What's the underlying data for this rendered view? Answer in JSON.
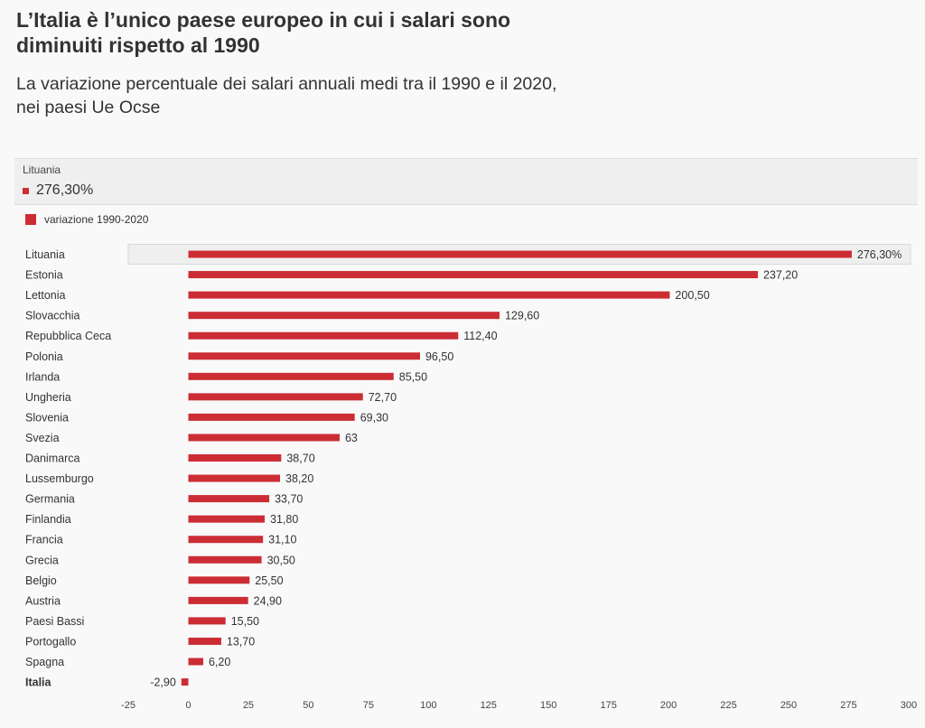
{
  "title": "L’Italia è l’unico paese europeo in cui i salari sono diminuiti rispetto al 1990",
  "subtitle": "La variazione percentuale dei salari annuali medi tra il 1990 e il 2020, nei paesi Ue Ocse",
  "tooltip": {
    "label": "Lituania",
    "value": "276,30%"
  },
  "legend": {
    "label": "variazione 1990-2020"
  },
  "colors": {
    "bar": "#cc2d35",
    "highlight_bg": "#efefef",
    "background": "#f9f9f9"
  },
  "chart_data": {
    "type": "bar",
    "orientation": "horizontal",
    "categories": [
      "Lituania",
      "Estonia",
      "Lettonia",
      "Slovacchia",
      "Repubblica Ceca",
      "Polonia",
      "Irlanda",
      "Ungheria",
      "Slovenia",
      "Svezia",
      "Danimarca",
      "Lussemburgo",
      "Germania",
      "Finlandia",
      "Francia",
      "Grecia",
      "Belgio",
      "Austria",
      "Paesi Bassi",
      "Portogallo",
      "Spagna",
      "Italia"
    ],
    "series": [
      {
        "name": "variazione 1990-2020",
        "values": [
          276.3,
          237.2,
          200.5,
          129.6,
          112.4,
          96.5,
          85.5,
          72.7,
          69.3,
          63,
          38.7,
          38.2,
          33.7,
          31.8,
          31.1,
          30.5,
          25.5,
          24.9,
          15.5,
          13.7,
          6.2,
          -2.9
        ]
      }
    ],
    "value_labels": [
      "276,30%",
      "237,20",
      "200,50",
      "129,60",
      "112,40",
      "96,50",
      "85,50",
      "72,70",
      "69,30",
      "63",
      "38,70",
      "38,20",
      "33,70",
      "31,80",
      "31,10",
      "30,50",
      "25,50",
      "24,90",
      "15,50",
      "13,70",
      "6,20",
      "-2,90"
    ],
    "xlim": [
      -25,
      300
    ],
    "x_ticks": [
      -25,
      0,
      25,
      50,
      75,
      100,
      125,
      150,
      175,
      200,
      225,
      250,
      275,
      300
    ],
    "highlighted_category": "Lituania",
    "bold_category": "Italia",
    "grid": false
  }
}
